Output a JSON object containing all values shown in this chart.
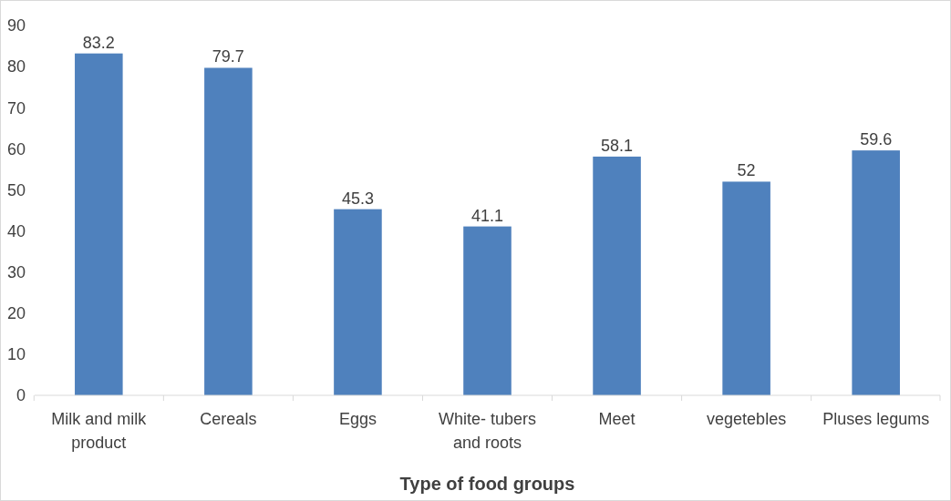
{
  "chart_data": {
    "type": "bar",
    "xlabel": "Type of  food groups",
    "categories": [
      "Milk and milk product",
      "Cereals",
      "Eggs",
      "White- tubers and  roots",
      "Meet",
      "vegetebles",
      "Pluses legums"
    ],
    "values": [
      83.2,
      79.7,
      45.3,
      41.1,
      58.1,
      52,
      59.6
    ],
    "color": "#4f81bd",
    "ylim": [
      0,
      90
    ],
    "yticks": [
      0,
      10,
      20,
      30,
      40,
      50,
      60,
      70,
      80,
      90
    ],
    "grid": false,
    "data_labels": true
  }
}
